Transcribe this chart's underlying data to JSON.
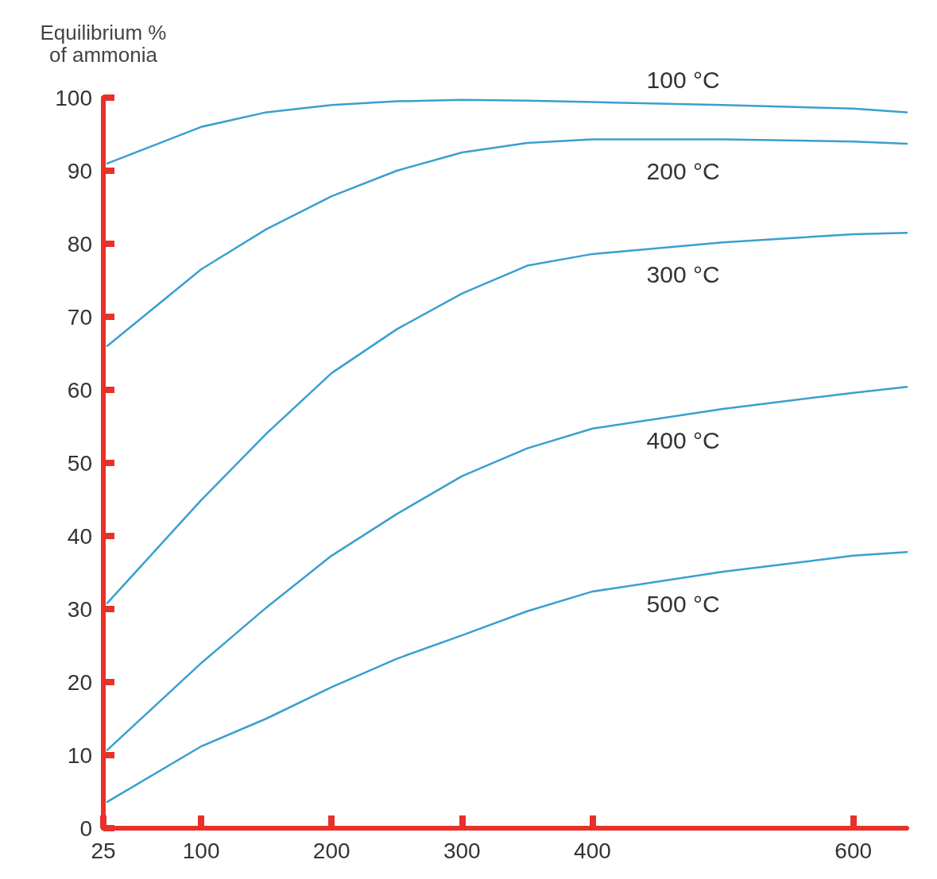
{
  "chart_data": {
    "type": "line",
    "ylabel": "Equilibrium %\nof ammonia",
    "x": [
      28,
      100,
      150,
      200,
      250,
      300,
      350,
      400,
      500,
      600,
      641
    ],
    "series": [
      {
        "name": "100 °C",
        "color": "#3a9fd0",
        "values": [
          91,
          96,
          98,
          99,
          99.5,
          99.7,
          99.6,
          99.4,
          99,
          98.5,
          98
        ]
      },
      {
        "name": "200 °C",
        "color": "#3a9fd0",
        "values": [
          66,
          76.5,
          82,
          86.5,
          90,
          92.5,
          93.8,
          94.3,
          94.3,
          94,
          93.7
        ]
      },
      {
        "name": "300 °C",
        "color": "#3a9fd0",
        "values": [
          30.8,
          44.9,
          54,
          62.3,
          68.3,
          73.2,
          77,
          78.6,
          80.2,
          81.3,
          81.5
        ]
      },
      {
        "name": "400 °C",
        "color": "#3a9fd0",
        "values": [
          10.7,
          22.6,
          30.2,
          37.3,
          43,
          48.2,
          52,
          54.7,
          57.4,
          59.6,
          60.4
        ]
      },
      {
        "name": "500 °C",
        "color": "#3a9fd0",
        "values": [
          3.6,
          11.2,
          15,
          19.3,
          23.2,
          26.4,
          29.7,
          32.4,
          35.1,
          37.3,
          37.8
        ]
      }
    ],
    "xlim": [
      25,
      641
    ],
    "xticks": [
      25,
      100,
      200,
      300,
      400,
      600
    ],
    "ylim": [
      0,
      100
    ],
    "yticks": [
      0,
      10,
      20,
      30,
      40,
      50,
      60,
      70,
      80,
      90,
      100
    ],
    "grid": false,
    "legend": false,
    "marker": "none",
    "line_style": "solid"
  }
}
